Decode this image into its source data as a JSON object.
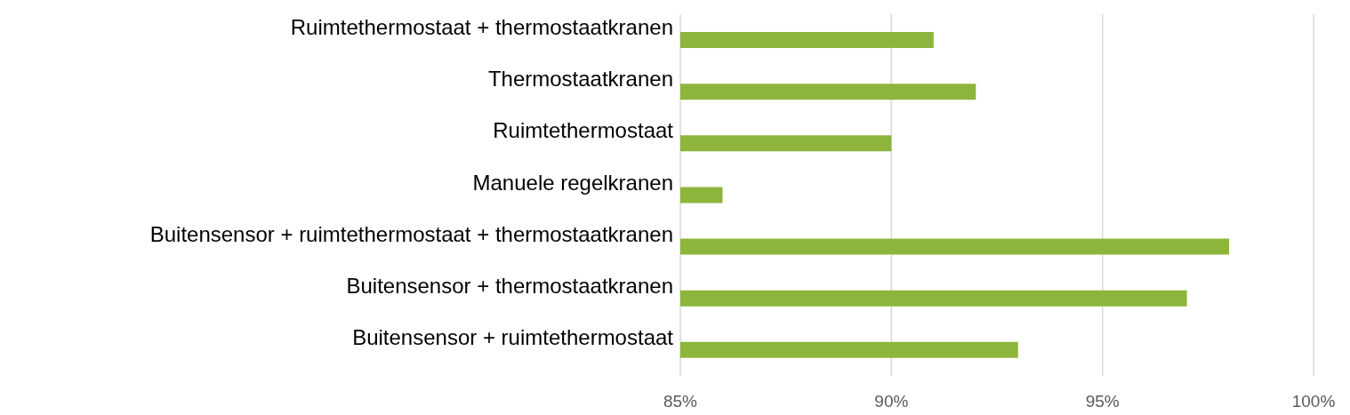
{
  "chart_data": {
    "type": "bar",
    "orientation": "horizontal",
    "categories": [
      "Ruimtethermostaat + thermostaatkranen",
      "Thermostaatkranen",
      "Ruimtethermostaat",
      "Manuele regelkranen",
      "Buitensensor + ruimtethermostaat + thermostaatkranen",
      "Buitensensor + thermostaatkranen",
      "Buitensensor + ruimtethermostaat"
    ],
    "values": [
      91,
      92,
      90,
      86,
      98,
      97,
      93
    ],
    "color": "#8db53c",
    "xlim": [
      85,
      100
    ],
    "xticks": [
      {
        "value": 85,
        "label": "85%"
      },
      {
        "value": 90,
        "label": "90%"
      },
      {
        "value": 95,
        "label": "95%"
      },
      {
        "value": 100,
        "label": "100%"
      }
    ],
    "grid": "x"
  }
}
